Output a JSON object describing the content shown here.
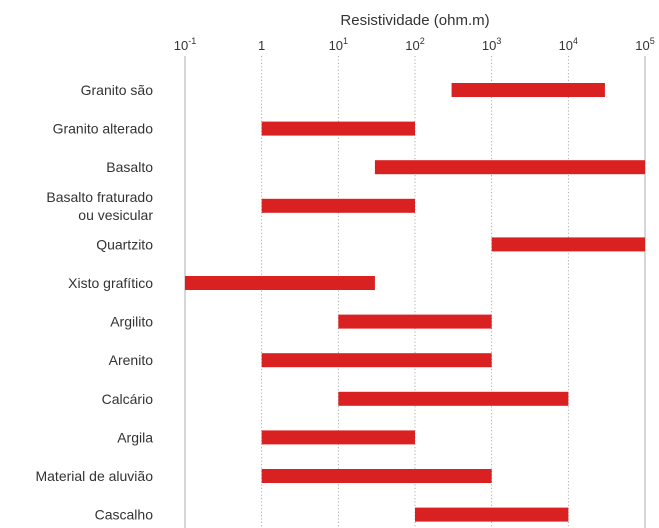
{
  "chart_data": {
    "type": "bar",
    "orientation": "horizontal",
    "title": "",
    "xlabel": "Resistividade (ohm.m)",
    "xscale": "log",
    "xlim": [
      0.1,
      100000
    ],
    "x_ticks": [
      {
        "value": 0.1,
        "base": "10",
        "exp": "-1"
      },
      {
        "value": 1,
        "base": "1",
        "exp": ""
      },
      {
        "value": 10,
        "base": "10",
        "exp": "1"
      },
      {
        "value": 100,
        "base": "10",
        "exp": "2"
      },
      {
        "value": 1000,
        "base": "10",
        "exp": "3"
      },
      {
        "value": 10000,
        "base": "10",
        "exp": "4"
      },
      {
        "value": 100000,
        "base": "10",
        "exp": "5"
      }
    ],
    "grid": true,
    "bar_color": "#d92121",
    "categories": [
      [
        "Granito são"
      ],
      [
        "Granito alterado"
      ],
      [
        "Basalto"
      ],
      [
        "Basalto fraturado",
        "ou vesicular"
      ],
      [
        "Quartzito"
      ],
      [
        "Xisto grafítico"
      ],
      [
        "Argilito"
      ],
      [
        "Arenito"
      ],
      [
        "Calcário"
      ],
      [
        "Argila"
      ],
      [
        "Material de aluvião"
      ],
      [
        "Cascalho"
      ]
    ],
    "ranges": [
      [
        300,
        30000
      ],
      [
        1,
        100
      ],
      [
        30,
        100000
      ],
      [
        1,
        100
      ],
      [
        1000,
        100000
      ],
      [
        0.1,
        30
      ],
      [
        10,
        1000
      ],
      [
        1,
        1000
      ],
      [
        10,
        10000
      ],
      [
        1,
        100
      ],
      [
        1,
        1000
      ],
      [
        100,
        10000
      ]
    ]
  }
}
